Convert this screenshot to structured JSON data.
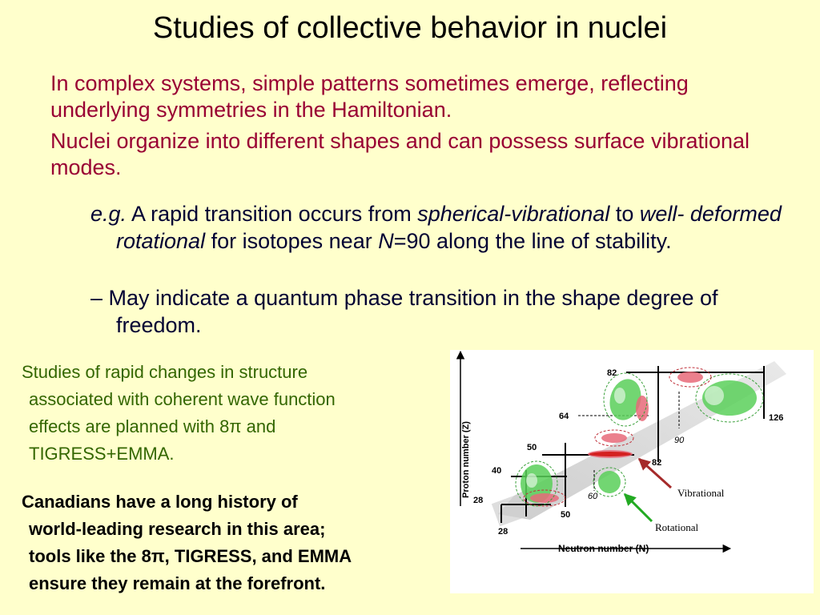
{
  "title": "Studies of collective behavior in nuclei",
  "intro": {
    "p1": "In complex systems, simple patterns sometimes emerge, reflecting underlying symmetries in the Hamiltonian.",
    "p2": "Nuclei organize into different shapes and can possess surface vibrational modes."
  },
  "bullet1": {
    "eg": "e.g.",
    "t1": " A rapid transition occurs from ",
    "t2": "spherical-vibrational",
    "t3": " to ",
    "t4": "well- deformed rotational",
    "t5": " for isotopes near ",
    "t6": "N",
    "t7": "=90 along the line of stability."
  },
  "bullet2": {
    "dash": "– ",
    "text": "May indicate a quantum phase transition in the shape degree of freedom."
  },
  "planned": {
    "l1": "Studies of rapid changes in structure",
    "l2": "associated with coherent wave function",
    "l3": "effects are planned with 8π and",
    "l4": "TIGRESS+EMMA."
  },
  "canada": {
    "l1": "Canadians have a long history of",
    "l2": "world-leading research in this area;",
    "l3": "tools like the 8π, TIGRESS, and EMMA",
    "l4": "ensure they remain at the forefront."
  },
  "diagram": {
    "y_axis": "Proton number (Z)",
    "x_axis": "Neutron number (N)",
    "magic": {
      "z82": "82",
      "z64": "64",
      "z50": "50",
      "z40": "40",
      "z28": "28",
      "n126": "126",
      "n82": "82",
      "n50": "50",
      "n28": "28",
      "n90": "90",
      "n60": "60"
    },
    "vibrational": "Vibrational",
    "rotational": "Rotational",
    "colors": {
      "vibrational_arrow": "#a52a2a",
      "rotational_arrow": "#22aa22"
    }
  }
}
